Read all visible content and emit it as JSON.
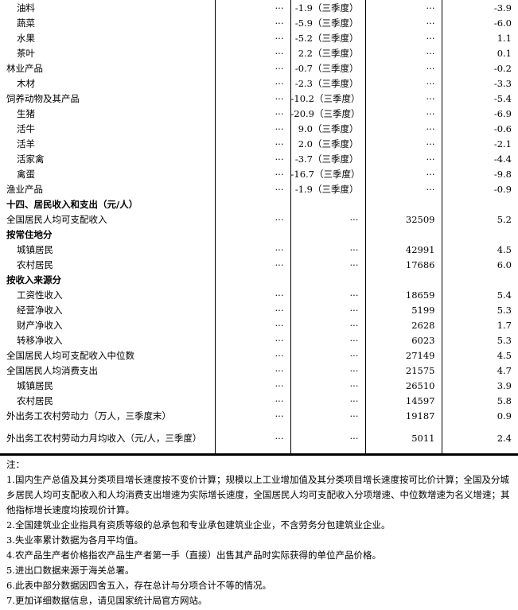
{
  "rows": [
    {
      "label": "油料",
      "c1": "···",
      "c2": "-1.9（三季度）",
      "c3": "···",
      "c4": "-3.9",
      "indent": true
    },
    {
      "label": "蔬菜",
      "c1": "···",
      "c2": "-5.9（三季度）",
      "c3": "···",
      "c4": "-6.0",
      "indent": true
    },
    {
      "label": "水果",
      "c1": "···",
      "c2": "-5.2（三季度）",
      "c3": "···",
      "c4": "1.1",
      "indent": true
    },
    {
      "label": "茶叶",
      "c1": "···",
      "c2": "2.2（三季度）",
      "c3": "···",
      "c4": "0.1",
      "indent": true
    },
    {
      "label": "林业产品",
      "c1": "···",
      "c2": "-0.7（三季度）",
      "c3": "···",
      "c4": "-0.2"
    },
    {
      "label": "木材",
      "c1": "···",
      "c2": "-2.3（三季度）",
      "c3": "···",
      "c4": "-3.3",
      "indent": true
    },
    {
      "label": "饲养动物及其产品",
      "c1": "···",
      "c2": "-10.2（三季度）",
      "c3": "···",
      "c4": "-5.4"
    },
    {
      "label": "生猪",
      "c1": "···",
      "c2": "-20.9（三季度）",
      "c3": "···",
      "c4": "-6.9",
      "indent": true
    },
    {
      "label": "活牛",
      "c1": "···",
      "c2": "9.0（三季度）",
      "c3": "···",
      "c4": "-0.6",
      "indent": true
    },
    {
      "label": "活羊",
      "c1": "···",
      "c2": "2.0（三季度）",
      "c3": "···",
      "c4": "-2.1",
      "indent": true
    },
    {
      "label": "活家禽",
      "c1": "···",
      "c2": "-3.7（三季度）",
      "c3": "···",
      "c4": "-4.4",
      "indent": true
    },
    {
      "label": "禽蛋",
      "c1": "···",
      "c2": "-16.7（三季度）",
      "c3": "···",
      "c4": "-9.8",
      "indent": true
    },
    {
      "label": "渔业产品",
      "c1": "···",
      "c2": "-1.9（三季度）",
      "c3": "···",
      "c4": "-0.9"
    },
    {
      "label": "十四、居民收入和支出（元/人）",
      "c1": "",
      "c2": "",
      "c3": "",
      "c4": "",
      "bold": true
    },
    {
      "label": "全国居民人均可支配收入",
      "c1": "···",
      "c2": "···",
      "c3": "32509",
      "c4": "5.2"
    },
    {
      "label": "按常住地分",
      "c1": "",
      "c2": "",
      "c3": "",
      "c4": "",
      "bold": true
    },
    {
      "label": "城镇居民",
      "c1": "···",
      "c2": "···",
      "c3": "42991",
      "c4": "4.5",
      "indent": true
    },
    {
      "label": "农村居民",
      "c1": "···",
      "c2": "···",
      "c3": "17686",
      "c4": "6.0",
      "indent": true
    },
    {
      "label": "按收入来源分",
      "c1": "",
      "c2": "",
      "c3": "",
      "c4": "",
      "bold": true
    },
    {
      "label": "工资性收入",
      "c1": "···",
      "c2": "···",
      "c3": "18659",
      "c4": "5.4",
      "indent": true
    },
    {
      "label": "经营净收入",
      "c1": "···",
      "c2": "···",
      "c3": "5199",
      "c4": "5.3",
      "indent": true
    },
    {
      "label": "财产净收入",
      "c1": "···",
      "c2": "···",
      "c3": "2628",
      "c4": "1.7",
      "indent": true
    },
    {
      "label": "转移净收入",
      "c1": "···",
      "c2": "···",
      "c3": "6023",
      "c4": "5.3",
      "indent": true
    },
    {
      "label": "全国居民人均可支配收入中位数",
      "c1": "···",
      "c2": "···",
      "c3": "27149",
      "c4": "4.5"
    },
    {
      "label": "全国居民人均消费支出",
      "c1": "···",
      "c2": "···",
      "c3": "21575",
      "c4": "4.7"
    },
    {
      "label": "城镇居民",
      "c1": "···",
      "c2": "···",
      "c3": "26510",
      "c4": "3.9",
      "indent": true
    },
    {
      "label": "农村居民",
      "c1": "···",
      "c2": "···",
      "c3": "14597",
      "c4": "5.8",
      "indent": true
    },
    {
      "label": "外出务工农村劳动力（万人，三季度末）",
      "c1": "···",
      "c2": "···",
      "c3": "19187",
      "c4": "0.9"
    },
    {
      "label": "外出务工农村劳动力月均收入（元/人，三季度）",
      "c1": "···",
      "c2": "···",
      "c3": "5011",
      "c4": "2.4",
      "two": true
    }
  ],
  "notes": [
    "注：",
    "1.国内生产总值及其分类项目增长速度按不变价计算；规模以上工业增加值及其分类项目增长速度按可比价计算；全国及分城乡居民人均可支配收入和人均消费支出增速为实际增长速度，全国居民人均可支配收入分项增速、中位数增速为名义增速；其他指标增长速度均按现价计算。",
    "2.全国建筑业企业指具有资质等级的总承包和专业承包建筑业企业，不含劳务分包建筑业企业。",
    "3.失业率累计数据为各月平均值。",
    "4.农产品生产者价格指农产品生产者第一手（直接）出售其产品时实际获得的单位产品价格。",
    "5.进出口数据来源于海关总署。",
    "6.此表中部分数据因四舍五入，存在总计与分项合计不等的情况。",
    "7.更加详细数据信息，请见国家统计局官方网站。"
  ]
}
